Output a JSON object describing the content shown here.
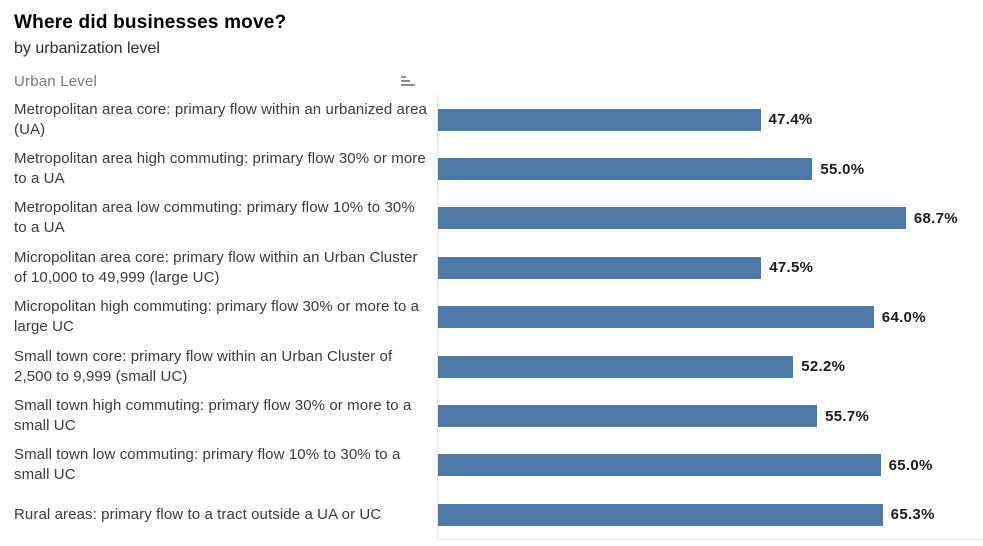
{
  "header": {
    "title": "Where did businesses move?",
    "subtitle": "by urbanization level"
  },
  "table": {
    "column_header": "Urban Level",
    "sort_icon": "sort-bars-icon"
  },
  "chart_data": {
    "type": "bar",
    "orientation": "horizontal",
    "title": "Where did businesses move?",
    "subtitle": "by urbanization level",
    "xlabel": "",
    "ylabel": "Urban Level",
    "xlim": [
      0,
      80
    ],
    "grid": false,
    "legend": false,
    "bar_color": "#4e79a7",
    "categories": [
      "Metropolitan area core: primary flow within an urbanized area (UA)",
      "Metropolitan area high commuting: primary flow 30% or more to a UA",
      "Metropolitan area low commuting: primary flow 10% to 30% to a UA",
      "Micropolitan area core: primary flow within an Urban Cluster of 10,000 to 49,999 (large UC)",
      "Micropolitan high commuting: primary flow 30% or more to a large UC",
      "Small town core: primary flow within an Urban Cluster of 2,500 to 9,999 (small UC)",
      "Small town high commuting: primary flow 30% or more to a small UC",
      "Small town low commuting: primary flow 10% to 30% to a small UC",
      "Rural areas: primary flow to a tract outside a UA or UC"
    ],
    "values": [
      47.4,
      55.0,
      68.7,
      47.5,
      64.0,
      52.2,
      55.7,
      65.0,
      65.3
    ],
    "value_labels": [
      "47.4%",
      "55.0%",
      "68.7%",
      "47.5%",
      "64.0%",
      "52.2%",
      "55.7%",
      "65.0%",
      "65.3%"
    ]
  }
}
